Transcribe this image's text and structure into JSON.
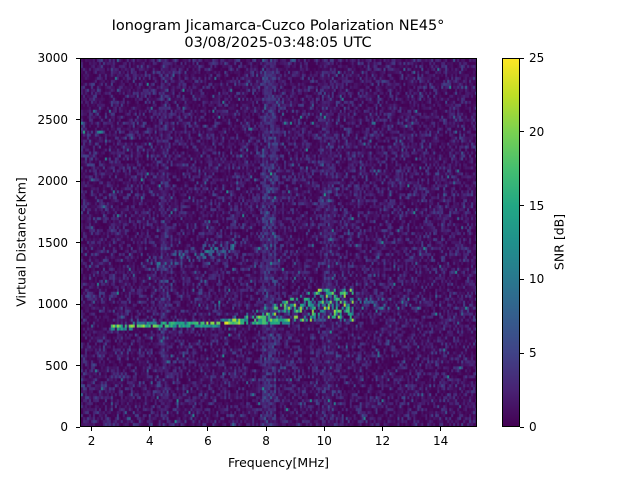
{
  "chart_data": {
    "type": "heatmap",
    "title": "Ionogram Jicamarca-Cuzco Polarization NE45°",
    "subtitle": "03/08/2025-03:48:05 UTC",
    "xlabel": "Frequency[MHz]",
    "ylabel": "Virtual Distance[Km]",
    "xlim": [
      1.6,
      15.25
    ],
    "ylim": [
      0,
      3000
    ],
    "xticks": [
      2,
      4,
      6,
      8,
      10,
      12,
      14
    ],
    "xtick_labels": [
      "2",
      "4",
      "6",
      "8",
      "10",
      "12",
      "14"
    ],
    "yticks": [
      0,
      500,
      1000,
      1500,
      2000,
      2500,
      3000
    ],
    "ytick_labels": [
      "0",
      "500",
      "1000",
      "1500",
      "2000",
      "2500",
      "3000"
    ],
    "colorbar": {
      "label": "SNR [dB]",
      "colormap": "viridis",
      "range": [
        0,
        25
      ],
      "ticks": [
        0,
        5,
        10,
        15,
        20,
        25
      ],
      "tick_labels": [
        "0",
        "5",
        "10",
        "15",
        "20",
        "25"
      ]
    },
    "grid": false,
    "background_snr_db": 1.5,
    "features": [
      {
        "name": "F-layer 1-hop trace (strong)",
        "freq_start_mhz": 2.6,
        "freq_end_mhz": 8.8,
        "distance_start_km": 810,
        "distance_end_km": 860,
        "snr_db": 25
      },
      {
        "name": "F-layer spread echoes",
        "freq_start_mhz": 6.5,
        "freq_end_mhz": 11.0,
        "distance_min_km": 850,
        "distance_max_km": 1130,
        "snr_db": 20
      },
      {
        "name": "Weak extension",
        "freq_start_mhz": 11.0,
        "freq_end_mhz": 13.0,
        "distance_min_km": 950,
        "distance_max_km": 1050,
        "snr_db": 10
      },
      {
        "name": "2-hop trace (weak)",
        "freq_start_mhz": 3.9,
        "freq_end_mhz": 7.0,
        "distance_start_km": 1320,
        "distance_end_km": 1480,
        "snr_db": 12
      },
      {
        "name": "Interference band",
        "freq_mhz": 8.1,
        "width_mhz": 0.25,
        "snr_db": 5
      },
      {
        "name": "Interference band",
        "freq_mhz": 4.5,
        "width_mhz": 0.15,
        "snr_db": 3.5
      },
      {
        "name": "Interference band",
        "freq_mhz": 10.1,
        "width_mhz": 0.2,
        "snr_db": 3
      }
    ]
  }
}
